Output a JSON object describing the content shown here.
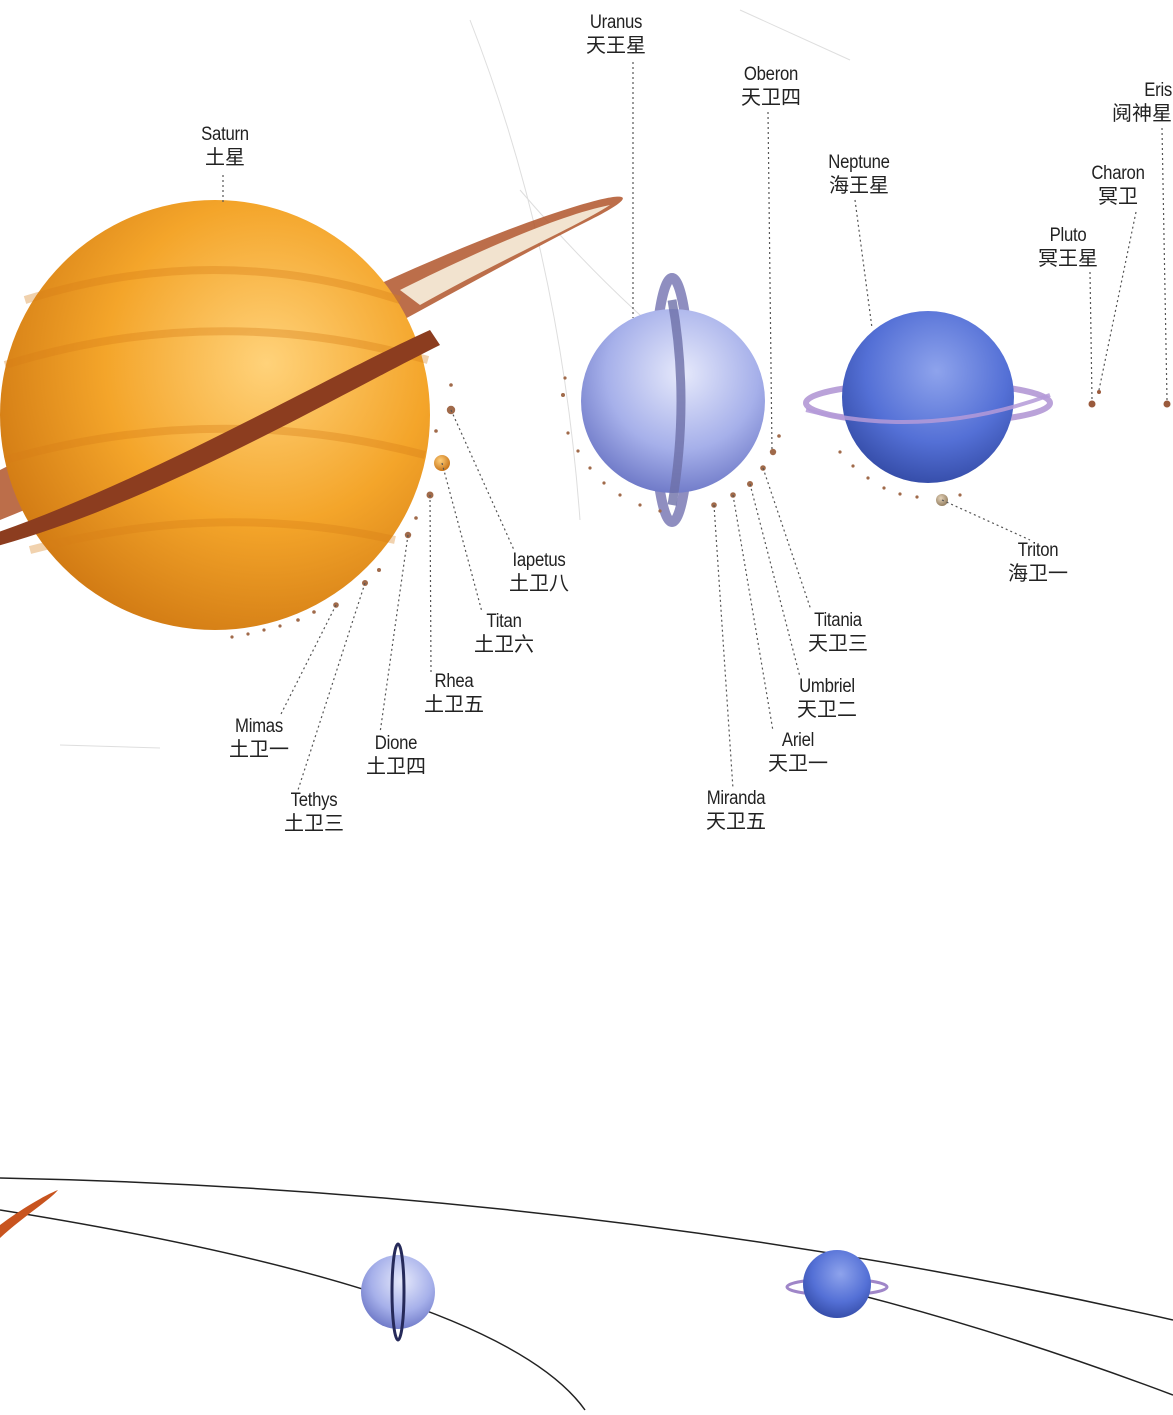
{
  "bodies": {
    "saturn": {
      "en": "Saturn",
      "zh": "土星",
      "color": "#f0a52a"
    },
    "uranus": {
      "en": "Uranus",
      "zh": "天王星",
      "color": "#aab4ee"
    },
    "neptune": {
      "en": "Neptune",
      "zh": "海王星",
      "color": "#5b73d8"
    },
    "pluto": {
      "en": "Pluto",
      "zh": "冥王星",
      "color": "#b06a4c"
    },
    "charon": {
      "en": "Charon",
      "zh": "冥卫"
    },
    "eris": {
      "en": "Eris",
      "zh": "阋神星"
    }
  },
  "saturn_moons": [
    {
      "key": "mimas",
      "en": "Mimas",
      "zh": "土卫一"
    },
    {
      "key": "tethys",
      "en": "Tethys",
      "zh": "土卫三"
    },
    {
      "key": "dione",
      "en": "Dione",
      "zh": "土卫四"
    },
    {
      "key": "rhea",
      "en": "Rhea",
      "zh": "土卫五"
    },
    {
      "key": "titan",
      "en": "Titan",
      "zh": "土卫六"
    },
    {
      "key": "iapetus",
      "en": "Iapetus",
      "zh": "土卫八"
    }
  ],
  "uranus_moons": [
    {
      "key": "oberon",
      "en": "Oberon",
      "zh": "天卫四"
    },
    {
      "key": "titania",
      "en": "Titania",
      "zh": "天卫三"
    },
    {
      "key": "umbriel",
      "en": "Umbriel",
      "zh": "天卫二"
    },
    {
      "key": "ariel",
      "en": "Ariel",
      "zh": "天卫一"
    },
    {
      "key": "miranda",
      "en": "Miranda",
      "zh": "天卫五"
    }
  ],
  "neptune_moons": [
    {
      "key": "triton",
      "en": "Triton",
      "zh": "海卫一"
    }
  ]
}
